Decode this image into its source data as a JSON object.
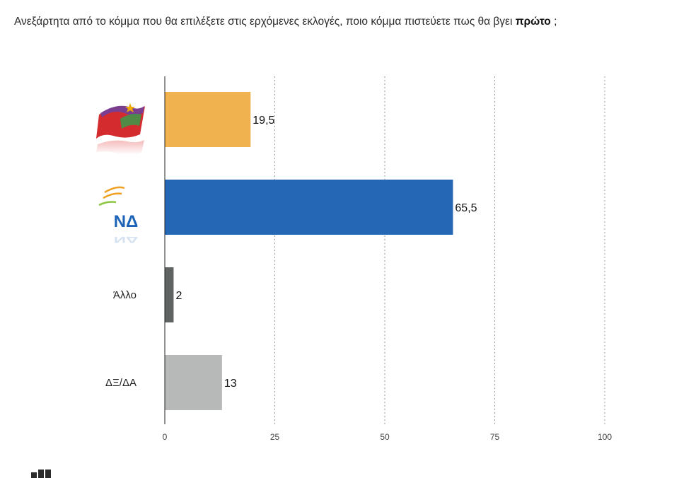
{
  "question": {
    "text_before": "Ανεξάρτητα από το κόμμα που θα επιλέξετε στις ερχόμενες εκλογές, ποιο κόμμα πιστεύετε πως θα βγει ",
    "text_bold": "πρώτο",
    "text_after": " ;"
  },
  "logos": {
    "syriza": "syriza-logo",
    "nd": {
      "text": "ΝΔ"
    }
  },
  "chart_data": {
    "type": "bar",
    "orientation": "horizontal",
    "title": "",
    "xlabel": "",
    "ylabel": "",
    "xlim": [
      0,
      100
    ],
    "ticks": [
      0,
      25,
      50,
      75,
      100
    ],
    "grid": true,
    "categories": [
      "ΣΥΡΙΖΑ",
      "ΝΔ",
      "Άλλο",
      "ΔΞ/ΔΑ"
    ],
    "category_display": [
      null,
      null,
      "Άλλο",
      "ΔΞ/ΔΑ"
    ],
    "values": [
      19.5,
      65.5,
      2,
      13
    ],
    "value_labels": [
      "19,5",
      "65,5",
      "2",
      "13"
    ],
    "colors": [
      "#f0b24e",
      "#2567b4",
      "#5f6362",
      "#b7b9b8"
    ]
  }
}
